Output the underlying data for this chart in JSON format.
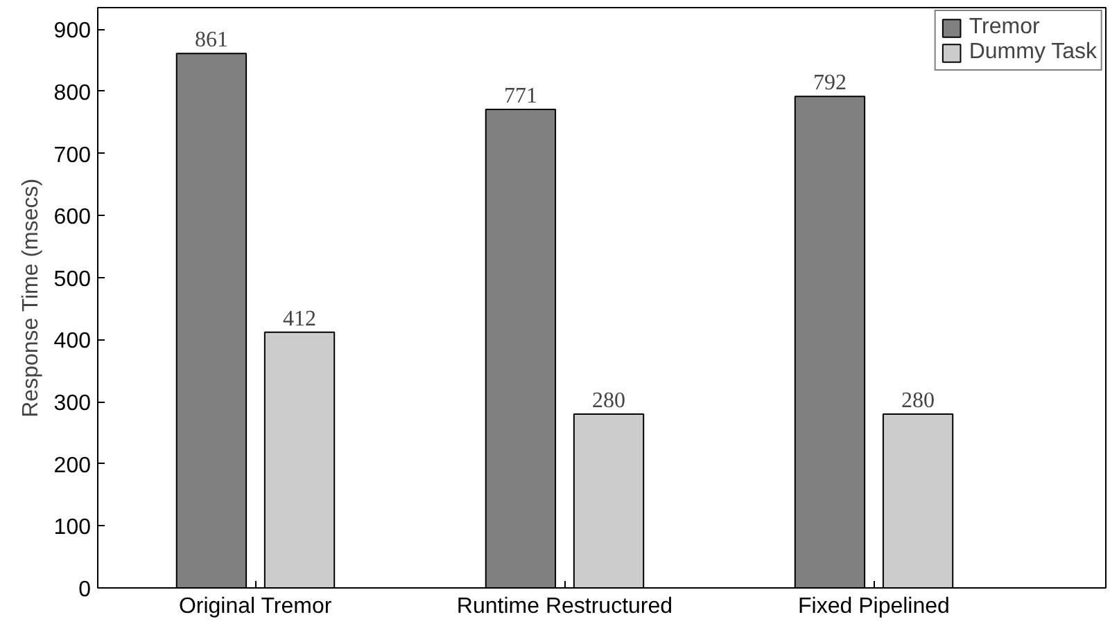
{
  "chart_data": {
    "type": "bar",
    "ylabel": "Response Time (msecs)",
    "categories": [
      "Original Tremor",
      "Runtime Restructured",
      "Fixed Pipelined"
    ],
    "series": [
      {
        "name": "Tremor",
        "color": "#808080",
        "values": [
          861,
          771,
          792
        ]
      },
      {
        "name": "Dummy Task",
        "color": "#cccccc",
        "values": [
          412,
          280,
          280
        ]
      }
    ],
    "ylim": [
      0,
      935
    ],
    "yticks": [
      0,
      100,
      200,
      300,
      400,
      500,
      600,
      700,
      800,
      900
    ],
    "data_labels": true,
    "legend": "top right",
    "grid": false
  }
}
